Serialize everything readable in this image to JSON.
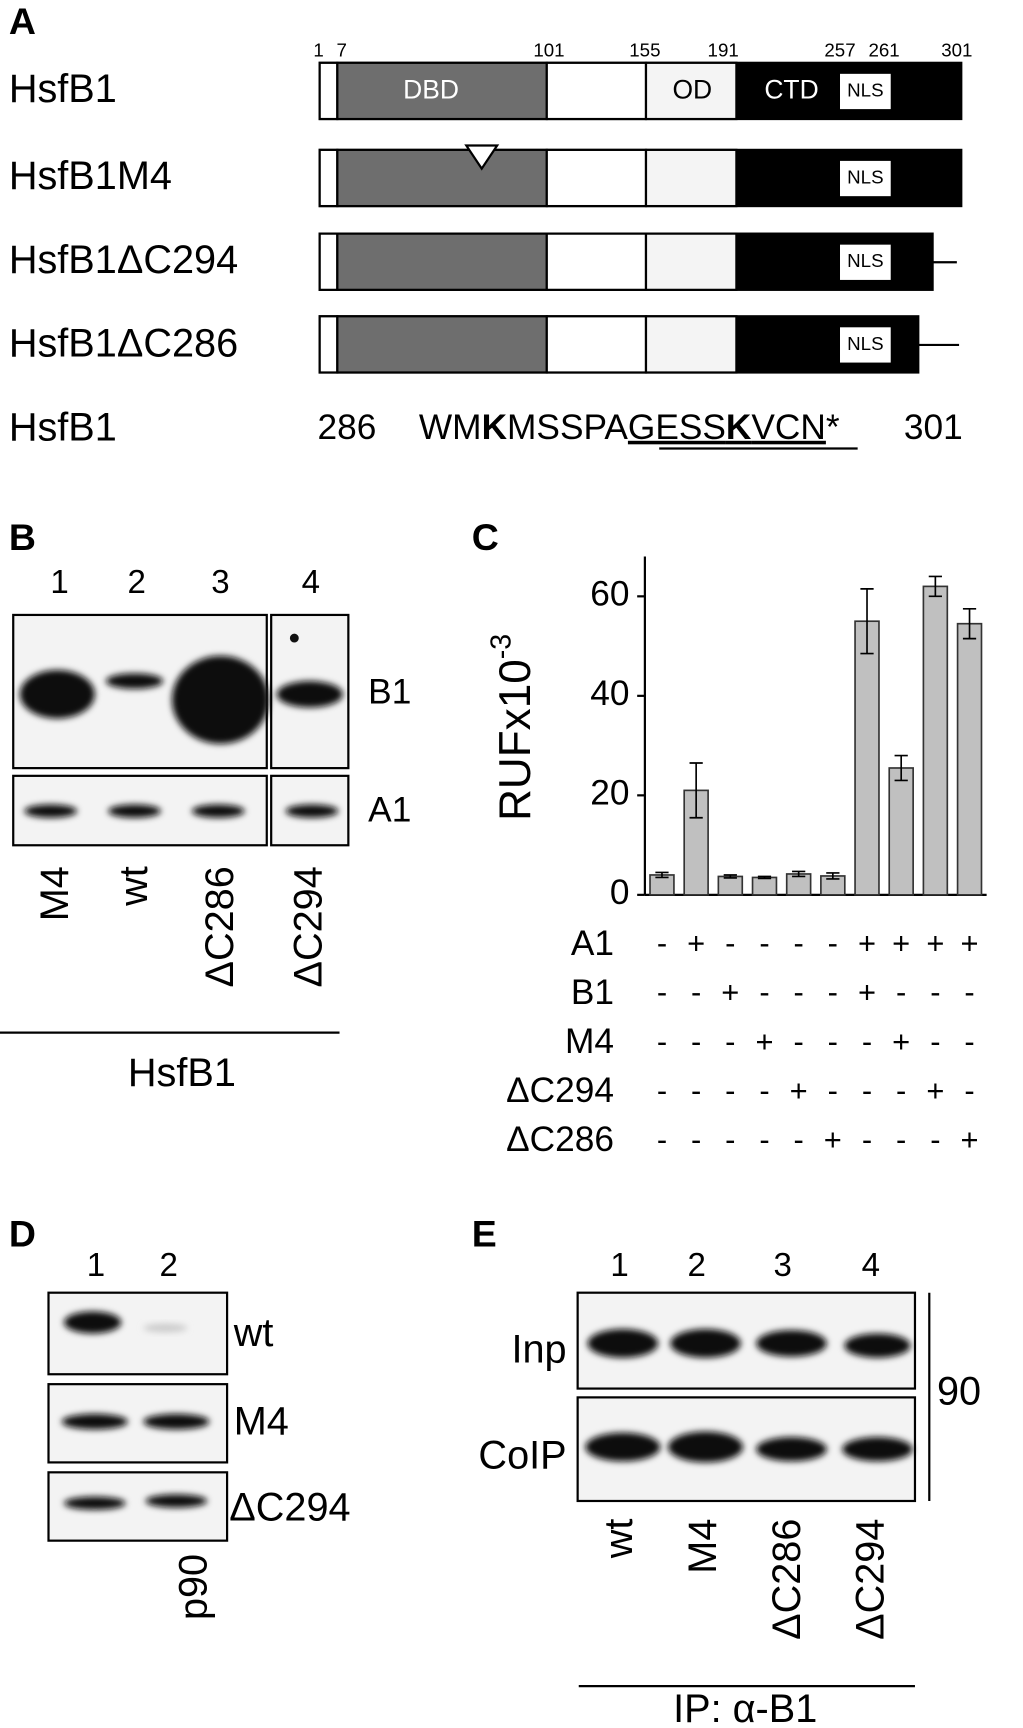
{
  "panel_a": {
    "letter": "A",
    "positions": [
      "1",
      "7",
      "101",
      "155",
      "191",
      "257",
      "261",
      "301"
    ],
    "constructs": [
      "HsfB1",
      "HsfB1M4",
      "HsfB1ΔC294",
      "HsfB1ΔC286"
    ],
    "domains": [
      "DBD",
      "OD",
      "CTD",
      "NLS"
    ],
    "sequence_name": "HsfB1",
    "sequence_start": "286",
    "sequence": [
      "WM",
      "K",
      "MSSPA",
      "GESS",
      "K",
      "VCN",
      "*"
    ],
    "sequence_end": "301"
  },
  "panel_b": {
    "letter": "B",
    "lanes": [
      "1",
      "2",
      "3",
      "4"
    ],
    "blots": [
      "B1",
      "A1"
    ],
    "samples": [
      "M4",
      "wt",
      "ΔC286",
      "ΔC294"
    ],
    "group": "HsfB1"
  },
  "chart_data": {
    "type": "bar",
    "letter": "C",
    "y_label": "RUFx10",
    "y_label_exponent": "-3",
    "values": [
      4,
      21,
      3.7,
      3.5,
      4.2,
      3.8,
      55,
      25.5,
      62,
      54.5
    ],
    "errors": [
      0.5,
      5.5,
      0.3,
      0.2,
      0.5,
      0.6,
      6.5,
      2.5,
      2,
      3
    ],
    "color": "#c0c0c0",
    "ylim": [
      0,
      68
    ],
    "yticks": [
      0,
      20,
      40,
      60
    ],
    "conditions": [
      {
        "name": "A1",
        "signs": [
          "-",
          "+",
          "-",
          "-",
          "-",
          "-",
          "+",
          "+",
          "+",
          "+"
        ]
      },
      {
        "name": "B1",
        "signs": [
          "-",
          "-",
          "+",
          "-",
          "-",
          "-",
          "+",
          "-",
          "-",
          "-"
        ]
      },
      {
        "name": "M4",
        "signs": [
          "-",
          "-",
          "-",
          "+",
          "-",
          "-",
          "-",
          "+",
          "-",
          "-"
        ]
      },
      {
        "name": "ΔC294",
        "signs": [
          "-",
          "-",
          "-",
          "-",
          "+",
          "-",
          "-",
          "-",
          "+",
          "-"
        ]
      },
      {
        "name": "ΔC286",
        "signs": [
          "-",
          "-",
          "-",
          "-",
          "-",
          "+",
          "-",
          "-",
          "-",
          "+"
        ]
      }
    ]
  },
  "panel_d": {
    "letter": "D",
    "lanes": [
      "1",
      "2"
    ],
    "blots": [
      "wt",
      "M4",
      "ΔC294"
    ],
    "antibody": "p90"
  },
  "panel_e": {
    "letter": "E",
    "lanes": [
      "1",
      "2",
      "3",
      "4"
    ],
    "blots": [
      "Inp",
      "CoIP"
    ],
    "size": "90",
    "samples": [
      "wt",
      "M4",
      "ΔC286",
      "ΔC294"
    ],
    "group": "IP: α-B1"
  }
}
